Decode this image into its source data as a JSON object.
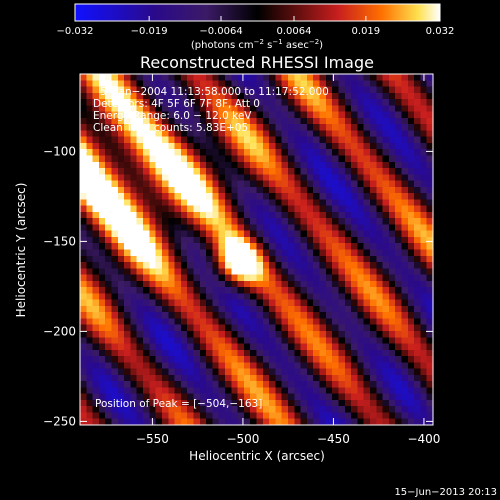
{
  "chart_data": {
    "type": "heatmap",
    "title": "Reconstructed RHESSI Image",
    "xlabel": "Heliocentric X (arcsec)",
    "ylabel": "Heliocentric Y (arcsec)",
    "xlim": [
      -590,
      -395
    ],
    "ylim": [
      -252,
      -57
    ],
    "x_ticks": [
      -550,
      -500,
      -450,
      -400
    ],
    "x_tick_labels": [
      "−550",
      "−500",
      "−450",
      "−400"
    ],
    "y_ticks": [
      -100,
      -150,
      -200,
      -250
    ],
    "y_tick_labels": [
      "−100",
      "−150",
      "−200",
      "−250"
    ],
    "colorbar": {
      "ticks": [
        -0.032,
        -0.019,
        -0.0064,
        0.0064,
        0.019,
        0.032
      ],
      "tick_labels": [
        "−0.032",
        "−0.019",
        "−0.0064",
        "0.0064",
        "0.019",
        "0.032"
      ],
      "range": [
        -0.032,
        0.032
      ],
      "units_label": "(photons cm",
      "units_exp1": "−2",
      "units_mid": " s",
      "units_exp2": "−1",
      "units_tail": " asec",
      "units_exp3": "−2",
      "units_close": ")"
    },
    "annotations": {
      "time": "5−Jan−2004 11:13:58.000 to 11:17:52.000",
      "detectors": "Detectors: 4F 5F 6F 7F 8F, Att 0",
      "energy": "Energy Range: 6.0 − 12.0 keV",
      "clean": "Clean     Total counts: 5.83E+05",
      "peak": "Position of Peak = [−504,−163]"
    },
    "peak": {
      "x": -504,
      "y": -163
    },
    "footer_date": "15−Jun−2013 20:13",
    "colormap": [
      "#1010ff",
      "#2a0a8a",
      "#3b1a66",
      "#000000",
      "#5a0d0d",
      "#c81e1e",
      "#ff7000",
      "#ffe050",
      "#ffffff"
    ]
  }
}
